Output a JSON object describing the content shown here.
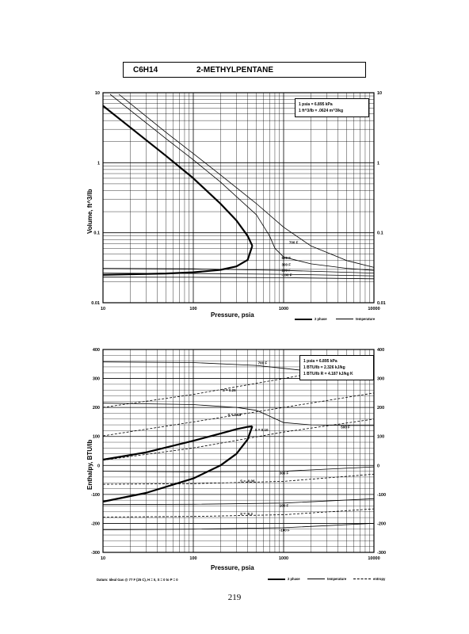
{
  "header": {
    "formula": "C6H14",
    "name": "2-METHYLPENTANE"
  },
  "page_number": "219",
  "footnote": "Datum: Ideal Gas @ 77 F (25 C), H = 0, S = 0 to P = 0",
  "chart_data": [
    {
      "type": "line",
      "x_scale": "log",
      "y_scale": "log",
      "xlim": [
        10,
        10000
      ],
      "ylim": [
        0.01,
        10
      ],
      "xlabel": "Pressure, psia",
      "ylabel": "Volume, ft^3/lb",
      "x_ticks": [
        "10",
        "100",
        "1000",
        "10000"
      ],
      "y_ticks_left": [
        "0.01",
        "0.1",
        "1",
        "10"
      ],
      "y_ticks_right": [
        "0.01",
        "0.1",
        "1",
        "10"
      ],
      "grid": true,
      "legend_position": "top-right",
      "conversion_notes": [
        "1 psia = 6.895 kPa",
        "1 ft^3/lb = .0624 m^3/kg"
      ],
      "key": [
        {
          "label": "2 phase",
          "style": "thick"
        },
        {
          "label": "temperature",
          "style": "thin"
        }
      ],
      "series": [
        {
          "role": "saturated-vapor",
          "style": "thick",
          "x": [
            10,
            20,
            50,
            100,
            200,
            300,
            400,
            450
          ],
          "y": [
            6.5,
            3.2,
            1.25,
            0.6,
            0.26,
            0.15,
            0.09,
            0.065
          ]
        },
        {
          "role": "saturated-liquid",
          "style": "thick",
          "x": [
            10,
            50,
            100,
            200,
            300,
            400,
            450
          ],
          "y": [
            0.025,
            0.0262,
            0.0272,
            0.0295,
            0.033,
            0.041,
            0.065
          ]
        },
        {
          "label": "700 F",
          "style": "thin",
          "x": [
            15,
            50,
            100,
            200,
            500,
            1000,
            2000,
            5000,
            10000
          ],
          "y": [
            9.5,
            2.7,
            1.35,
            0.67,
            0.26,
            0.12,
            0.065,
            0.04,
            0.032
          ]
        },
        {
          "label": "500 F",
          "style": "thin",
          "x": [
            12,
            50,
            100,
            200,
            500,
            700,
            800,
            1000,
            2000,
            5000,
            10000
          ],
          "y": [
            9.5,
            2.2,
            1.1,
            0.53,
            0.18,
            0.09,
            0.06,
            0.045,
            0.036,
            0.031,
            0.029
          ]
        },
        {
          "label": "300 F",
          "style": "thin",
          "x": [
            10,
            100,
            1000,
            10000
          ],
          "y": [
            0.031,
            0.0305,
            0.029,
            0.0265
          ]
        },
        {
          "label": "100 F",
          "style": "thin",
          "x": [
            10,
            100,
            1000,
            10000
          ],
          "y": [
            0.0265,
            0.0262,
            0.0255,
            0.0242
          ]
        },
        {
          "label": "-100 F",
          "style": "thin",
          "x": [
            10,
            100,
            1000,
            10000
          ],
          "y": [
            0.0232,
            0.0231,
            0.0228,
            0.022
          ]
        }
      ]
    },
    {
      "type": "line",
      "x_scale": "log",
      "y_scale": "linear",
      "xlim": [
        10,
        10000
      ],
      "ylim": [
        -300,
        400
      ],
      "xlabel": "Pressure, psia",
      "ylabel": "Enthalpy, BTU/lb",
      "x_ticks": [
        "10",
        "100",
        "1000",
        "10000"
      ],
      "y_ticks_left": [
        "400",
        "300",
        "200",
        "100",
        "0",
        "-100",
        "-200",
        "-300"
      ],
      "y_ticks_right": [
        "400",
        "300",
        "200",
        "100",
        "0",
        "-100",
        "-200",
        "-300"
      ],
      "grid": true,
      "legend_position": "top-right",
      "conversion_notes": [
        "1 psia = 6.895 kPa",
        "1 BTU/lb = 2.326 kJ/kg",
        "1 BTU/lb R = 4.187 kJ/kg K"
      ],
      "key": [
        {
          "label": "2 phase",
          "style": "thick"
        },
        {
          "label": "temperature",
          "style": "thin"
        },
        {
          "label": "entropy",
          "style": "dashed"
        }
      ],
      "series": [
        {
          "role": "saturated-vapor",
          "style": "thick",
          "x": [
            10,
            30,
            100,
            200,
            300,
            400,
            450
          ],
          "y": [
            20,
            45,
            85,
            110,
            125,
            133,
            135
          ]
        },
        {
          "role": "saturated-liquid",
          "style": "thick",
          "x": [
            10,
            30,
            100,
            200,
            300,
            400,
            450
          ],
          "y": [
            -125,
            -95,
            -45,
            0,
            40,
            90,
            135
          ]
        },
        {
          "label": "700 F",
          "style": "thin",
          "x": [
            10,
            100,
            500,
            1000,
            2000,
            5000,
            10000
          ],
          "y": [
            357,
            355,
            345,
            335,
            325,
            318,
            315
          ]
        },
        {
          "label": "500 F",
          "style": "thin",
          "x": [
            10,
            100,
            300,
            500,
            700,
            1000,
            2000,
            5000,
            10000
          ],
          "y": [
            215,
            210,
            200,
            190,
            170,
            148,
            140,
            138,
            138
          ]
        },
        {
          "label": "300 F",
          "style": "thin",
          "x": [
            10,
            100,
            1000,
            10000
          ],
          "y": [
            -20,
            -22,
            -20,
            -5
          ]
        },
        {
          "label": "100 F",
          "style": "thin",
          "x": [
            10,
            100,
            1000,
            10000
          ],
          "y": [
            -135,
            -134,
            -130,
            -115
          ]
        },
        {
          "label": "-100 F",
          "style": "thin",
          "x": [
            10,
            100,
            1000,
            10000
          ],
          "y": [
            -222,
            -220,
            -215,
            -200
          ]
        },
        {
          "label": "S = 0.26",
          "style": "dashed",
          "x": [
            10,
            100,
            1000,
            10000
          ],
          "y": [
            200,
            245,
            300,
            355
          ]
        },
        {
          "label": "S = 0.18",
          "style": "dashed",
          "x": [
            10,
            100,
            1000,
            10000
          ],
          "y": [
            102,
            150,
            200,
            250
          ]
        },
        {
          "label": "S = 0.10",
          "style": "dashed",
          "x": [
            10,
            100,
            1000,
            10000
          ],
          "y": [
            18,
            60,
            115,
            160
          ]
        },
        {
          "label": "S = -0.06",
          "style": "dashed",
          "x": [
            10,
            100,
            1000,
            10000
          ],
          "y": [
            -65,
            -63,
            -55,
            -30
          ]
        },
        {
          "label": "S = -0.2",
          "style": "dashed",
          "x": [
            10,
            100,
            1000,
            10000
          ],
          "y": [
            -178,
            -176,
            -170,
            -150
          ]
        }
      ]
    }
  ]
}
